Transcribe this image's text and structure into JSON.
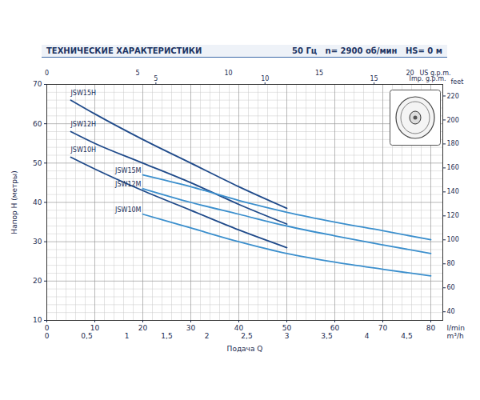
{
  "chart_data": {
    "type": "line",
    "title": "ТЕХНИЧЕСКИЕ ХАРАКТЕРИСТИКИ",
    "subtitle": "50 Гц   n= 2900 об/мин   HS= 0 м",
    "xlabel": "Подача Q",
    "x_unit": "l/min",
    "ylabel": "Напор H (метры)",
    "x": [
      5,
      10,
      20,
      30,
      40,
      50,
      60,
      70,
      80
    ],
    "series": [
      {
        "name": "JSW15H",
        "color": "#1f4a8a",
        "values": [
          66,
          62.5,
          56,
          50,
          44,
          38.5,
          null,
          null,
          null
        ]
      },
      {
        "name": "JSW12H",
        "color": "#1f4a8a",
        "values": [
          58,
          55,
          50,
          45,
          39.5,
          34.5,
          null,
          null,
          null
        ]
      },
      {
        "name": "JSW10H",
        "color": "#1f4a8a",
        "values": [
          51.5,
          48.5,
          43,
          38,
          33,
          28.5,
          null,
          null,
          null
        ]
      },
      {
        "name": "JSW15M",
        "color": "#3b8fcd",
        "values": [
          null,
          null,
          47,
          44,
          40.5,
          37.5,
          35,
          32.8,
          30.5
        ]
      },
      {
        "name": "JSW12M",
        "color": "#3b8fcd",
        "values": [
          null,
          null,
          43.5,
          40,
          37,
          34,
          31.5,
          29.2,
          27
        ]
      },
      {
        "name": "JSW10M",
        "color": "#3b8fcd",
        "values": [
          null,
          null,
          37,
          33.5,
          30,
          27,
          24.8,
          23,
          21.3
        ]
      }
    ],
    "xlim": [
      0,
      82.5
    ],
    "xticks": [
      0,
      10,
      20,
      30,
      40,
      50,
      60,
      70,
      80
    ],
    "ylim": [
      10,
      70
    ],
    "yticks": [
      10,
      20,
      30,
      40,
      50,
      60,
      70
    ],
    "grid": true,
    "extra_axes": [
      {
        "name": "m³/h",
        "side": "bottom",
        "lim": [
          0,
          4.95
        ],
        "ticks": [
          0,
          {
            "value": 0.5,
            "label": "0,5"
          },
          1,
          {
            "value": 1.5,
            "label": "1,5"
          },
          2,
          {
            "value": 2.5,
            "label": "2,5"
          },
          3,
          {
            "value": 3.5,
            "label": "3,5"
          },
          4,
          {
            "value": 4.5,
            "label": "4,5"
          }
        ]
      },
      {
        "name": "US g.p.m.",
        "side": "top",
        "lim": [
          0,
          21.8
        ],
        "ticks": [
          0,
          5,
          10,
          15,
          20
        ]
      },
      {
        "name": "Imp. g.p.m.",
        "side": "top",
        "lim": [
          0,
          18.15
        ],
        "ticks": [
          5,
          10,
          15
        ]
      },
      {
        "name": "feet",
        "side": "right",
        "lim": [
          32.81,
          229.66
        ],
        "ticks": [
          40,
          60,
          80,
          100,
          120,
          140,
          160,
          180,
          200,
          220
        ]
      }
    ]
  }
}
